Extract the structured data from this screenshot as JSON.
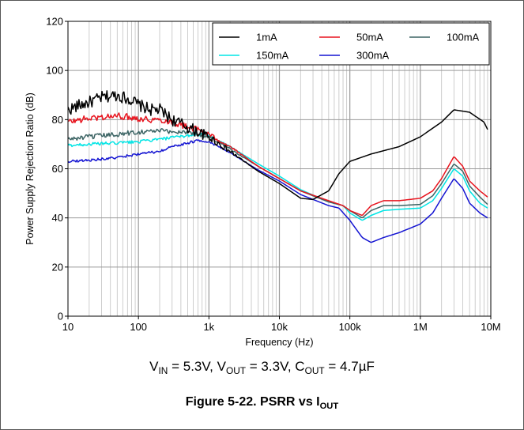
{
  "conditions": {
    "vin_label": "V",
    "vin_sub": "IN",
    "vin_val": " = 5.3V, ",
    "vout_label": "V",
    "vout_sub": "OUT",
    "vout_val": " = 3.3V, ",
    "cout_label": "C",
    "cout_sub": "OUT",
    "cout_val": " = 4.7µF"
  },
  "caption": {
    "prefix": "Figure 5-22. PSRR vs I",
    "sub": "OUT"
  },
  "chart_data": {
    "type": "line",
    "title": "",
    "xlabel": "Frequency (Hz)",
    "ylabel": "Power Supply Rejection Ratio (dB)",
    "xscale": "log",
    "xlim": [
      10,
      10000000
    ],
    "ylim": [
      0,
      120
    ],
    "xticks": [
      10,
      100,
      1000,
      10000,
      100000,
      1000000,
      10000000
    ],
    "xtick_labels": [
      "10",
      "100",
      "1k",
      "10k",
      "100k",
      "1M",
      "10M"
    ],
    "yticks": [
      0,
      20,
      40,
      60,
      80,
      100,
      120
    ],
    "ytick_labels": [
      "0",
      "20",
      "40",
      "60",
      "80",
      "100",
      "120"
    ],
    "grid": true,
    "legend_position": "top-right",
    "series": [
      {
        "name": "1mA",
        "color": "#000000",
        "noise": 2.5,
        "x": [
          10,
          15,
          20,
          30,
          50,
          80,
          100,
          150,
          200,
          300,
          500,
          700,
          1000,
          2000,
          5000,
          10000,
          15000,
          20000,
          30000,
          50000,
          70000,
          100000,
          200000,
          500000,
          1000000,
          2000000,
          3000000,
          5000000,
          8000000,
          9000000
        ],
        "y": [
          84,
          86,
          87,
          89,
          90,
          88,
          86,
          84,
          84,
          80,
          77,
          75,
          73,
          67,
          59,
          54,
          50.5,
          48,
          47.5,
          51,
          58,
          63,
          66,
          69,
          73,
          79,
          84,
          83,
          79,
          76
        ]
      },
      {
        "name": "50mA",
        "color": "#e8141e",
        "noise": 1.3,
        "x": [
          10,
          15,
          20,
          30,
          50,
          80,
          100,
          150,
          200,
          300,
          500,
          700,
          1000,
          2000,
          5000,
          10000,
          20000,
          50000,
          80000,
          100000,
          150000,
          200000,
          300000,
          500000,
          1000000,
          1500000,
          2000000,
          3000000,
          4000000,
          5000000,
          7000000,
          9000000
        ],
        "y": [
          79,
          80,
          80.5,
          81,
          81.5,
          81,
          80.5,
          80,
          80,
          79,
          77,
          76,
          74,
          69,
          61,
          56,
          51,
          47,
          45,
          43,
          41,
          45,
          47,
          47,
          48,
          51,
          56,
          65,
          61,
          55,
          51,
          48.5
        ]
      },
      {
        "name": "100mA",
        "color": "#3c6464",
        "noise": 1.0,
        "x": [
          10,
          20,
          50,
          100,
          200,
          300,
          500,
          700,
          1000,
          2000,
          5000,
          10000,
          20000,
          50000,
          80000,
          100000,
          150000,
          200000,
          300000,
          500000,
          1000000,
          1500000,
          2000000,
          3000000,
          4000000,
          5000000,
          7000000,
          9000000
        ],
        "y": [
          72,
          73,
          74,
          75,
          75.5,
          75,
          75,
          74,
          73,
          68,
          61,
          56,
          51,
          46.5,
          45,
          43,
          40,
          43,
          45,
          45,
          45.5,
          49,
          54,
          62,
          59,
          53,
          48.5,
          45.5
        ]
      },
      {
        "name": "150mA",
        "color": "#00e5e5",
        "noise": 0.6,
        "x": [
          10,
          20,
          50,
          100,
          200,
          500,
          700,
          1000,
          2000,
          5000,
          10000,
          20000,
          50000,
          80000,
          100000,
          150000,
          200000,
          300000,
          500000,
          1000000,
          1500000,
          2000000,
          3000000,
          4000000,
          5000000,
          7000000,
          9000000
        ],
        "y": [
          69.5,
          70,
          70.5,
          71,
          72,
          73.5,
          74,
          73.5,
          69,
          62,
          57,
          51.5,
          46.5,
          45,
          42,
          39,
          41,
          43,
          43.5,
          44,
          47,
          52,
          60,
          57,
          51,
          46,
          44
        ]
      },
      {
        "name": "300mA",
        "color": "#1414d2",
        "noise": 0.5,
        "x": [
          10,
          20,
          50,
          100,
          200,
          300,
          500,
          700,
          1000,
          2000,
          5000,
          10000,
          20000,
          50000,
          70000,
          100000,
          150000,
          200000,
          300000,
          500000,
          1000000,
          1500000,
          2000000,
          3000000,
          4000000,
          5000000,
          7000000,
          9000000
        ],
        "y": [
          63,
          63.5,
          64.5,
          66,
          67,
          69,
          70.5,
          71.5,
          71,
          66.5,
          59.5,
          55,
          49.5,
          45,
          44,
          39,
          32,
          30,
          32,
          34,
          37.5,
          42,
          48,
          56,
          52,
          46,
          42,
          40
        ]
      }
    ]
  }
}
